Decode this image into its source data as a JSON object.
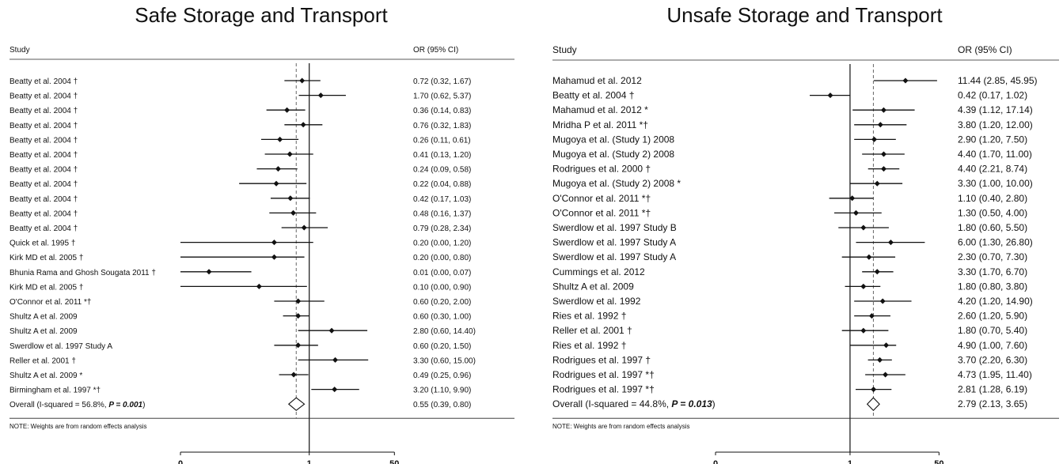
{
  "chart_data": [
    {
      "type": "forest",
      "title": "Safe Storage and Transport",
      "col_study": "Study",
      "col_or": "OR (95% CI)",
      "x_scale": "log",
      "x_ticks": [
        {
          "value": 0.0027,
          "label": "0"
        },
        {
          "value": 1,
          "label": "1"
        },
        {
          "value": 50,
          "label": "50"
        }
      ],
      "null_line": 1,
      "overall_line": 0.55,
      "studies": [
        {
          "name": "Beatty et al. 2004 †",
          "or": 0.72,
          "lo": 0.32,
          "hi": 1.67,
          "ci_text": "0.72 (0.32, 1.67)"
        },
        {
          "name": "Beatty et al. 2004 †",
          "or": 1.7,
          "lo": 0.62,
          "hi": 5.37,
          "ci_text": "1.70 (0.62, 5.37)"
        },
        {
          "name": "Beatty et al. 2004 †",
          "or": 0.36,
          "lo": 0.14,
          "hi": 0.83,
          "ci_text": "0.36 (0.14, 0.83)"
        },
        {
          "name": "Beatty et al. 2004 †",
          "or": 0.76,
          "lo": 0.32,
          "hi": 1.83,
          "ci_text": "0.76 (0.32, 1.83)"
        },
        {
          "name": "Beatty et al. 2004 †",
          "or": 0.26,
          "lo": 0.11,
          "hi": 0.61,
          "ci_text": "0.26 (0.11, 0.61)"
        },
        {
          "name": "Beatty et al. 2004 †",
          "or": 0.41,
          "lo": 0.13,
          "hi": 1.2,
          "ci_text": "0.41 (0.13, 1.20)"
        },
        {
          "name": "Beatty et al. 2004 †",
          "or": 0.24,
          "lo": 0.09,
          "hi": 0.58,
          "ci_text": "0.24 (0.09, 0.58)"
        },
        {
          "name": "Beatty et al. 2004 †",
          "or": 0.22,
          "lo": 0.04,
          "hi": 0.88,
          "ci_text": "0.22 (0.04, 0.88)"
        },
        {
          "name": "Beatty et al. 2004 †",
          "or": 0.42,
          "lo": 0.17,
          "hi": 1.03,
          "ci_text": "0.42 (0.17, 1.03)"
        },
        {
          "name": "Beatty et al. 2004 †",
          "or": 0.48,
          "lo": 0.16,
          "hi": 1.37,
          "ci_text": "0.48 (0.16, 1.37)"
        },
        {
          "name": "Beatty et al. 2004 †",
          "or": 0.79,
          "lo": 0.28,
          "hi": 2.34,
          "ci_text": "0.79 (0.28, 2.34)"
        },
        {
          "name": "Quick et al. 1995 †",
          "or": 0.2,
          "lo": 0.0027,
          "hi": 1.2,
          "ci_text": "0.20 (0.00, 1.20)"
        },
        {
          "name": "Kirk MD et al. 2005 †",
          "or": 0.2,
          "lo": 0.0027,
          "hi": 0.8,
          "ci_text": "0.20 (0.00, 0.80)"
        },
        {
          "name": "Bhunia Rama and Ghosh Sougata 2011 †",
          "or": 0.01,
          "lo": 0.0027,
          "hi": 0.07,
          "ci_text": "0.01 (0.00, 0.07)"
        },
        {
          "name": "Kirk MD et al. 2005 †",
          "or": 0.1,
          "lo": 0.0027,
          "hi": 0.9,
          "ci_text": "0.10 (0.00, 0.90)"
        },
        {
          "name": "O'Connor et al. 2011 *†",
          "or": 0.6,
          "lo": 0.2,
          "hi": 2.0,
          "ci_text": "0.60 (0.20, 2.00)"
        },
        {
          "name": "Shultz A et al. 2009",
          "or": 0.6,
          "lo": 0.3,
          "hi": 1.0,
          "ci_text": "0.60 (0.30, 1.00)"
        },
        {
          "name": "Shultz A et al. 2009",
          "or": 2.8,
          "lo": 0.6,
          "hi": 14.4,
          "ci_text": "2.80 (0.60, 14.40)"
        },
        {
          "name": "Swerdlow et al. 1997 Study A",
          "or": 0.6,
          "lo": 0.2,
          "hi": 1.5,
          "ci_text": "0.60 (0.20, 1.50)"
        },
        {
          "name": "Reller et al. 2001 †",
          "or": 3.3,
          "lo": 0.6,
          "hi": 15.0,
          "ci_text": "3.30 (0.60, 15.00)"
        },
        {
          "name": "Shultz A et al. 2009 *",
          "or": 0.49,
          "lo": 0.25,
          "hi": 0.96,
          "ci_text": "0.49 (0.25, 0.96)"
        },
        {
          "name": "Birmingham et al. 1997 *†",
          "or": 3.2,
          "lo": 1.1,
          "hi": 9.9,
          "ci_text": "3.20 (1.10, 9.90)"
        }
      ],
      "overall": {
        "label_prefix": "Overall  (I-squared = 56.8%, ",
        "label_p": "P = 0.001",
        "label_suffix": ")",
        "or": 0.55,
        "lo": 0.39,
        "hi": 0.8,
        "ci_text": "0.55 (0.39, 0.80)"
      },
      "note": "NOTE: Weights are from random effects analysis"
    },
    {
      "type": "forest",
      "title": "Unsafe Storage and Transport",
      "col_study": "Study",
      "col_or": "OR (95% CI)",
      "x_scale": "log",
      "x_ticks": [
        {
          "value": 0.0027,
          "label": "0"
        },
        {
          "value": 1,
          "label": "1"
        },
        {
          "value": 50,
          "label": "50"
        }
      ],
      "null_line": 1,
      "overall_line": 2.79,
      "studies": [
        {
          "name": "Mahamud et al. 2012",
          "or": 11.44,
          "lo": 2.85,
          "hi": 45.95,
          "ci_text": "11.44 (2.85, 45.95)"
        },
        {
          "name": "Beatty et al. 2004 †",
          "or": 0.42,
          "lo": 0.17,
          "hi": 1.02,
          "ci_text": "0.42 (0.17, 1.02)"
        },
        {
          "name": "Mahamud et al. 2012 *",
          "or": 4.39,
          "lo": 1.12,
          "hi": 17.14,
          "ci_text": "4.39 (1.12, 17.14)"
        },
        {
          "name": "Mridha P et al. 2011 *†",
          "or": 3.8,
          "lo": 1.2,
          "hi": 12.0,
          "ci_text": "3.80 (1.20, 12.00)"
        },
        {
          "name": "Mugoya et al. (Study 1) 2008",
          "or": 2.9,
          "lo": 1.2,
          "hi": 7.5,
          "ci_text": "2.90 (1.20, 7.50)"
        },
        {
          "name": "Mugoya et al. (Study 2) 2008",
          "or": 4.4,
          "lo": 1.7,
          "hi": 11.0,
          "ci_text": "4.40 (1.70, 11.00)"
        },
        {
          "name": "Rodrigues et al. 2000 †",
          "or": 4.4,
          "lo": 2.21,
          "hi": 8.74,
          "ci_text": "4.40 (2.21, 8.74)"
        },
        {
          "name": "Mugoya et al. (Study 2) 2008 *",
          "or": 3.3,
          "lo": 1.0,
          "hi": 10.0,
          "ci_text": "3.30 (1.00, 10.00)"
        },
        {
          "name": "O'Connor et al. 2011 *†",
          "or": 1.1,
          "lo": 0.4,
          "hi": 2.8,
          "ci_text": "1.10 (0.40, 2.80)"
        },
        {
          "name": "O'Connor et al. 2011 *†",
          "or": 1.3,
          "lo": 0.5,
          "hi": 4.0,
          "ci_text": "1.30 (0.50, 4.00)"
        },
        {
          "name": "Swerdlow et al. 1997 Study B",
          "or": 1.8,
          "lo": 0.6,
          "hi": 5.5,
          "ci_text": "1.80 (0.60, 5.50)"
        },
        {
          "name": "Swerdlow et al. 1997 Study A",
          "or": 6.0,
          "lo": 1.3,
          "hi": 26.8,
          "ci_text": "6.00 (1.30, 26.80)"
        },
        {
          "name": "Swerdlow et al. 1997 Study A",
          "or": 2.3,
          "lo": 0.7,
          "hi": 7.3,
          "ci_text": "2.30 (0.70, 7.30)"
        },
        {
          "name": "Cummings et al. 2012",
          "or": 3.3,
          "lo": 1.7,
          "hi": 6.7,
          "ci_text": "3.30 (1.70, 6.70)"
        },
        {
          "name": "Shultz A et al. 2009",
          "or": 1.8,
          "lo": 0.8,
          "hi": 3.8,
          "ci_text": "1.80 (0.80, 3.80)"
        },
        {
          "name": "Swerdlow et al. 1992",
          "or": 4.2,
          "lo": 1.2,
          "hi": 14.9,
          "ci_text": "4.20 (1.20, 14.90)"
        },
        {
          "name": "Ries et al. 1992 †",
          "or": 2.6,
          "lo": 1.2,
          "hi": 5.9,
          "ci_text": "2.60 (1.20, 5.90)"
        },
        {
          "name": "Reller et al. 2001 †",
          "or": 1.8,
          "lo": 0.7,
          "hi": 5.4,
          "ci_text": "1.80 (0.70, 5.40)"
        },
        {
          "name": "Ries et al. 1992 †",
          "or": 4.9,
          "lo": 1.0,
          "hi": 7.6,
          "ci_text": "4.90 (1.00, 7.60)"
        },
        {
          "name": "Rodrigues et al. 1997 †",
          "or": 3.7,
          "lo": 2.2,
          "hi": 6.3,
          "ci_text": "3.70 (2.20, 6.30)"
        },
        {
          "name": "Rodrigues et al. 1997 *†",
          "or": 4.73,
          "lo": 1.95,
          "hi": 11.4,
          "ci_text": "4.73 (1.95, 11.40)"
        },
        {
          "name": "Rodrigues et al. 1997 *†",
          "or": 2.81,
          "lo": 1.28,
          "hi": 6.19,
          "ci_text": "2.81 (1.28, 6.19)"
        }
      ],
      "overall": {
        "label_prefix": "Overall  (I-squared = 44.8%, ",
        "label_p": "P = 0.013",
        "label_suffix": ")",
        "or": 2.79,
        "lo": 2.13,
        "hi": 3.65,
        "ci_text": "2.79 (2.13, 3.65)"
      },
      "note": "NOTE: Weights are from random effects analysis"
    }
  ]
}
